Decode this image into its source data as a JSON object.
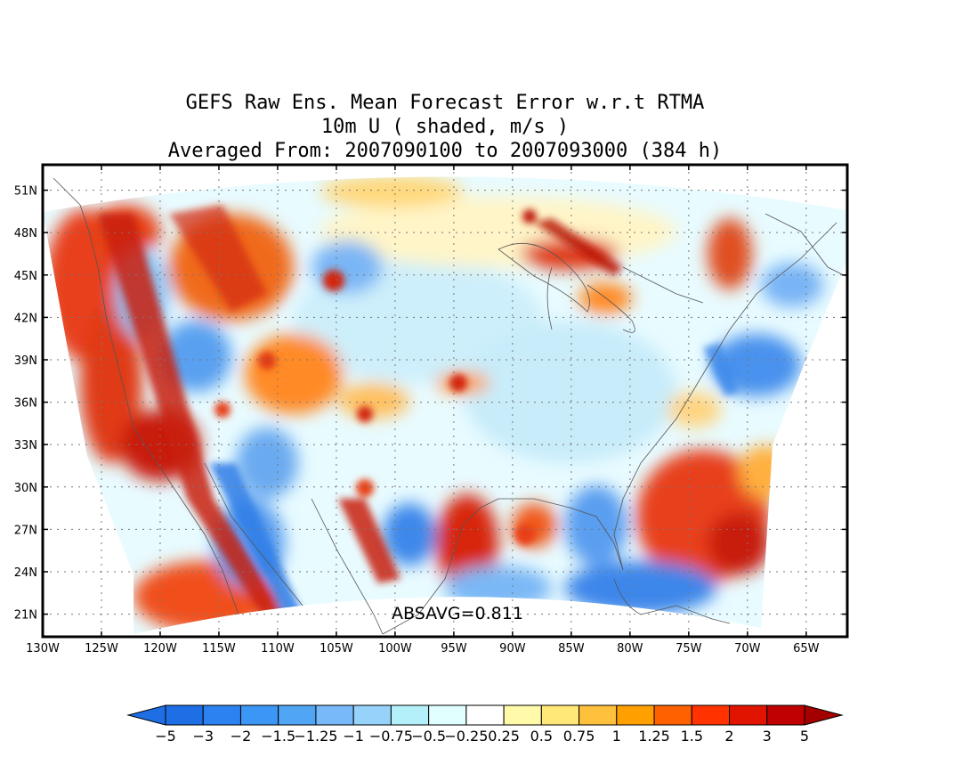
{
  "title": {
    "line1": "GEFS Raw Ens. Mean Forecast Error w.r.t RTMA",
    "line2": "10m U ( shaded, m/s )",
    "line3": "Averaged From: 2007090100 to 2007093000 (384 h)"
  },
  "map": {
    "annotation": "ABSAVG=0.811",
    "lat_labels": [
      "51N",
      "48N",
      "45N",
      "42N",
      "39N",
      "36N",
      "33N",
      "30N",
      "27N",
      "24N",
      "21N"
    ],
    "lat_values": [
      51,
      48,
      45,
      42,
      39,
      36,
      33,
      30,
      27,
      24,
      21
    ],
    "lon_labels": [
      "130W",
      "125W",
      "120W",
      "115W",
      "110W",
      "105W",
      "100W",
      "95W",
      "90W",
      "85W",
      "80W",
      "75W",
      "70W",
      "65W"
    ],
    "lon_values": [
      -130,
      -125,
      -120,
      -115,
      -110,
      -105,
      -100,
      -95,
      -90,
      -85,
      -80,
      -75,
      -70,
      -65
    ],
    "lat_range": [
      19.4,
      52.8
    ],
    "lon_range": [
      -130,
      -61.5
    ]
  },
  "colorbar": {
    "labels": [
      "-5",
      "-3",
      "-2",
      "-1.5",
      "-1.25",
      "-1",
      "-0.75",
      "-0.5",
      "-0.25",
      "0.25",
      "0.5",
      "0.75",
      "1",
      "1.25",
      "1.5",
      "2",
      "3",
      "5"
    ],
    "colors": [
      "#1e6ee6",
      "#1e6ee6",
      "#2b82f0",
      "#3c96f5",
      "#50a5f5",
      "#78b9fa",
      "#96d2fa",
      "#b4f0fa",
      "#e1ffff",
      "#ffffff",
      "#fffaaa",
      "#ffe878",
      "#ffc03c",
      "#ffa000",
      "#ff6000",
      "#ff3200",
      "#e11400",
      "#c00000",
      "#a50000"
    ]
  },
  "colors": {
    "strong_blue": "#3c80e6",
    "light_blue": "#b4e6fa",
    "orange": "#ff7a00",
    "red": "#d21a0a"
  }
}
